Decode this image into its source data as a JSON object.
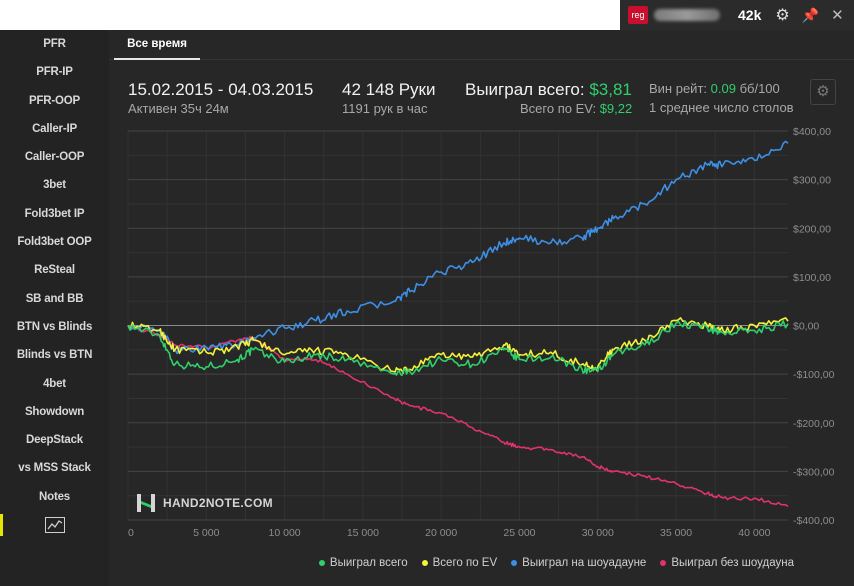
{
  "topbar": {
    "brand_badge": "reg",
    "hand_count": "42k",
    "icons": [
      "gear-icon",
      "pin-icon",
      "close-icon"
    ]
  },
  "sidebar": {
    "items": [
      "PFR",
      "PFR-IP",
      "PFR-OOP",
      "Caller-IP",
      "Caller-OOP",
      "3bet",
      "Fold3bet IP",
      "Fold3bet OOP",
      "ReSteal",
      "SB and BB",
      "BTN vs Blinds",
      "Blinds vs BTN",
      "4bet",
      "Showdown",
      "DeepStack",
      "vs MSS Stack",
      "Notes"
    ],
    "active_icon": "line-chart-icon"
  },
  "tabs": {
    "active": "Все время"
  },
  "stats": {
    "date_range": "15.02.2015 - 04.03.2015",
    "active_time": "Активен 35ч 24м",
    "hands": "42 148 Руки",
    "hands_per_hour": "1191 рук в час",
    "won_total_label": "Выиграл всего:",
    "won_total_value": "$3,81",
    "ev_label": "Всего по EV:",
    "ev_value": "$9,22",
    "winrate_label": "Вин рейт:",
    "winrate_value": "0.09",
    "winrate_unit": "бб/100",
    "tables": "1 среднее число столов"
  },
  "watermark": "HAND2NOTE.COM",
  "colors": {
    "green": "#2fcf6c",
    "yellow": "#f2f23a",
    "blue": "#3d8fe6",
    "pink": "#e0336b",
    "background": "#272727"
  },
  "chart_data": {
    "type": "line",
    "xlim": [
      0,
      42148
    ],
    "ylim": [
      -400,
      400
    ],
    "x_ticks": [
      "0",
      "5 000",
      "10 000",
      "15 000",
      "20 000",
      "25 000",
      "30 000",
      "35 000",
      "40 000"
    ],
    "y_ticks": [
      "$400,00",
      "$300,00",
      "$200,00",
      "$100,00",
      "$0,00",
      "-$100,00",
      "-$200,00",
      "-$300,00",
      "-$400,00"
    ],
    "grid": true,
    "legend_position": "bottom-right",
    "x": [
      0,
      2000,
      3000,
      5000,
      7000,
      8000,
      10000,
      12000,
      14000,
      17000,
      18000,
      20000,
      22000,
      24000,
      25000,
      27000,
      29000,
      30000,
      31000,
      33000,
      35000,
      37000,
      38000,
      40000,
      42148
    ],
    "series": [
      {
        "name": "Выиграл всего",
        "color": "#2fcf6c",
        "values": [
          0,
          -20,
          -80,
          -85,
          -70,
          -50,
          -75,
          -60,
          -70,
          -100,
          -95,
          -70,
          -80,
          -50,
          -70,
          -65,
          -90,
          -95,
          -60,
          -40,
          5,
          -5,
          -15,
          -10,
          4
        ]
      },
      {
        "name": "Всего по EV",
        "color": "#f2f23a",
        "values": [
          0,
          -10,
          -50,
          -55,
          -45,
          -30,
          -60,
          -50,
          -60,
          -95,
          -90,
          -60,
          -65,
          -40,
          -60,
          -55,
          -80,
          -85,
          -50,
          -30,
          10,
          0,
          -10,
          0,
          9
        ]
      },
      {
        "name": "Выиграл на шоуадауне",
        "color": "#3d8fe6",
        "values": [
          0,
          -10,
          -50,
          -45,
          -40,
          -25,
          -5,
          10,
          30,
          50,
          70,
          110,
          130,
          170,
          180,
          170,
          180,
          200,
          220,
          250,
          300,
          330,
          330,
          340,
          375
        ]
      },
      {
        "name": "Выиграл без шоудауна",
        "color": "#e0336b",
        "values": [
          0,
          -20,
          -40,
          -45,
          -30,
          -25,
          -70,
          -70,
          -100,
          -150,
          -165,
          -180,
          -210,
          -240,
          -250,
          -255,
          -270,
          -290,
          -300,
          -310,
          -325,
          -345,
          -355,
          -355,
          -372
        ]
      }
    ]
  }
}
